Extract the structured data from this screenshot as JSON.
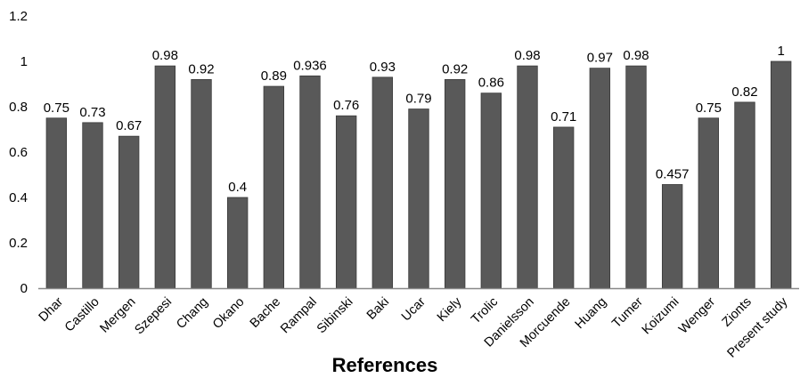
{
  "chart_data": {
    "type": "bar",
    "categories": [
      "Dhar",
      "Castillo",
      "Mergen",
      "Szepesi",
      "Chang",
      "Okano",
      "Bache",
      "Rampal",
      "Sibinski",
      "Baki",
      "Ucar",
      "Kiely",
      "Trolic",
      "Danielsson",
      "Morcuende",
      "Huang",
      "Tumer",
      "Koizumi",
      "Wenger",
      "Zionts",
      "Present study"
    ],
    "values": [
      0.75,
      0.73,
      0.67,
      0.98,
      0.92,
      0.4,
      0.89,
      0.936,
      0.76,
      0.93,
      0.79,
      0.92,
      0.86,
      0.98,
      0.71,
      0.97,
      0.98,
      0.457,
      0.75,
      0.82,
      1
    ],
    "data_labels": [
      "0.75",
      "0.73",
      "0.67",
      "0.98",
      "0.92",
      "0.4",
      "0.89",
      "0.936",
      "0.76",
      "0.93",
      "0.79",
      "0.92",
      "0.86",
      "0.98",
      "0.71",
      "0.97",
      "0.98",
      "0.457",
      "0.75",
      "0.82",
      "1"
    ],
    "yticks": [
      "0",
      "0.2",
      "0.4",
      "0.6",
      "0.8",
      "1",
      "1.2"
    ],
    "ylim": [
      0,
      1.2
    ],
    "xlabel": "References",
    "ylabel": "",
    "title": "",
    "grid": false,
    "bar_color": "#595959",
    "axis_color": "#888888"
  }
}
